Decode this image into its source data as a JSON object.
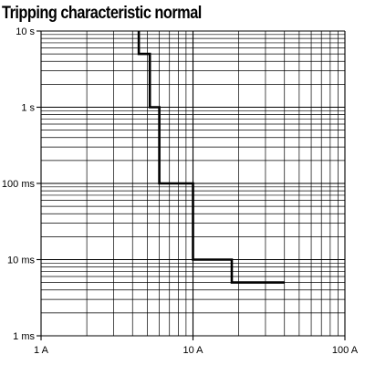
{
  "chart_data": {
    "type": "line",
    "title": "Tripping characteristic normal",
    "xlabel": "",
    "ylabel": "",
    "x_scale": "log",
    "y_scale": "log",
    "xlim": [
      1,
      100
    ],
    "ylim": [
      0.001,
      10
    ],
    "x_ticks": [
      {
        "value": 1,
        "label": "1 A"
      },
      {
        "value": 10,
        "label": "10 A"
      },
      {
        "value": 100,
        "label": "100 A"
      }
    ],
    "y_ticks": [
      {
        "value": 10,
        "label": "10 s"
      },
      {
        "value": 1,
        "label": "1 s"
      },
      {
        "value": 0.1,
        "label": "100 ms"
      },
      {
        "value": 0.01,
        "label": "10 ms"
      },
      {
        "value": 0.001,
        "label": "1 ms"
      }
    ],
    "grid": true,
    "series": [
      {
        "color": "#000000",
        "points": [
          {
            "x": 4.4,
            "y": 10
          },
          {
            "x": 4.4,
            "y": 5
          },
          {
            "x": 5.2,
            "y": 5
          },
          {
            "x": 5.2,
            "y": 1
          },
          {
            "x": 6.0,
            "y": 1
          },
          {
            "x": 6.0,
            "y": 0.1
          },
          {
            "x": 10,
            "y": 0.1
          },
          {
            "x": 10,
            "y": 0.01
          },
          {
            "x": 18,
            "y": 0.01
          },
          {
            "x": 18,
            "y": 0.005
          },
          {
            "x": 40,
            "y": 0.005
          }
        ]
      }
    ]
  }
}
